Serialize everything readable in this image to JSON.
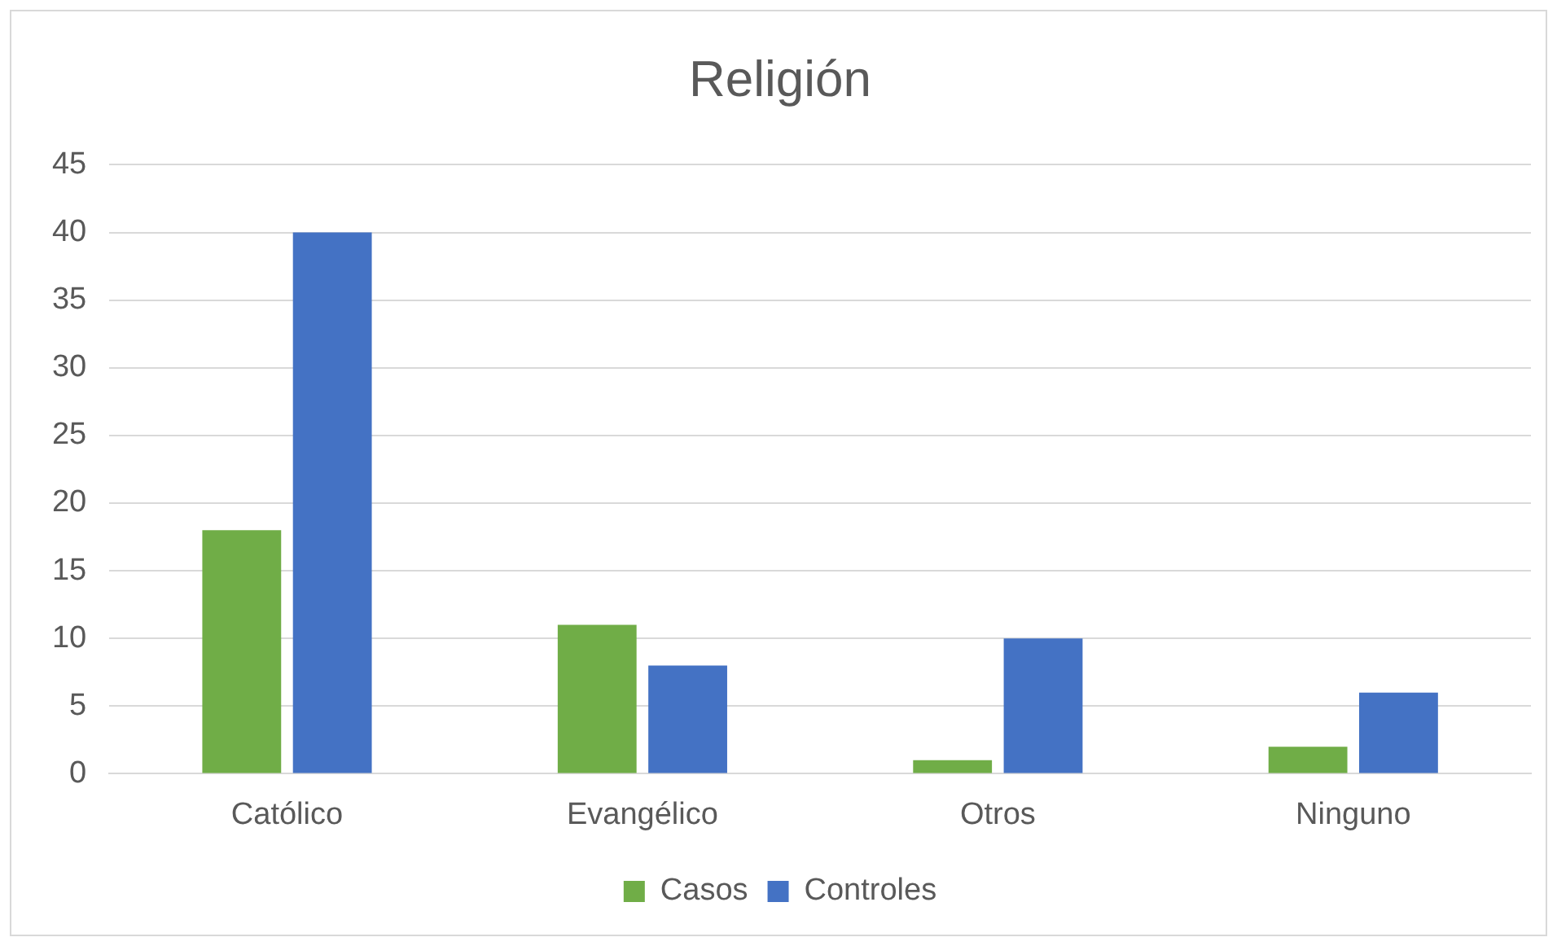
{
  "chart_data": {
    "type": "bar",
    "title": "Religión",
    "categories": [
      "Católico",
      "Evangélico",
      "Otros",
      "Ninguno"
    ],
    "series": [
      {
        "name": "Casos",
        "color": "#70ad47",
        "values": [
          18,
          11,
          1,
          2
        ]
      },
      {
        "name": "Controles",
        "color": "#4472c4",
        "values": [
          40,
          8,
          10,
          6
        ]
      }
    ],
    "ylim": [
      0,
      45
    ],
    "yticks": [
      0,
      5,
      10,
      15,
      20,
      25,
      30,
      35,
      40,
      45
    ],
    "grid": "y",
    "legend": "bottom"
  }
}
